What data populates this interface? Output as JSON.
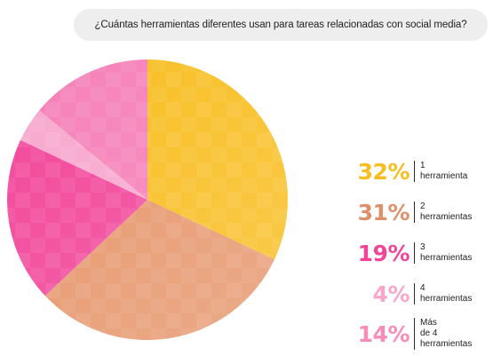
{
  "question": "¿Cuántas herramientas diferentes usan para tareas relacionadas con social media?",
  "chart_data": {
    "type": "pie",
    "title": "¿Cuántas herramientas diferentes usan para tareas relacionadas con social media?",
    "categories": [
      "1 herramienta",
      "2 herramientas",
      "3 herramientas",
      "4 herramientas",
      "Más de 4 herramientas"
    ],
    "values": [
      32,
      31,
      19,
      4,
      14
    ],
    "unit": "%",
    "legend_placement": "right",
    "colors": [
      "#f8bd1e",
      "#e6956a",
      "#f2459a",
      "#f7a7cd",
      "#f57fb8"
    ],
    "legend": [
      {
        "pct": "32%",
        "lines": [
          "1",
          "herramienta"
        ],
        "color": "#f8bd1e"
      },
      {
        "pct": "31%",
        "lines": [
          "2",
          "herramientas"
        ],
        "color": "#df8f6a"
      },
      {
        "pct": "19%",
        "lines": [
          "3",
          "herramientas"
        ],
        "color": "#f2459a"
      },
      {
        "pct": "4%",
        "lines": [
          "4",
          "herramientas"
        ],
        "color": "#f8a6cc"
      },
      {
        "pct": "14%",
        "lines": [
          "Más",
          "de 4",
          "herramientas"
        ],
        "color": "#f78bb9"
      }
    ]
  }
}
